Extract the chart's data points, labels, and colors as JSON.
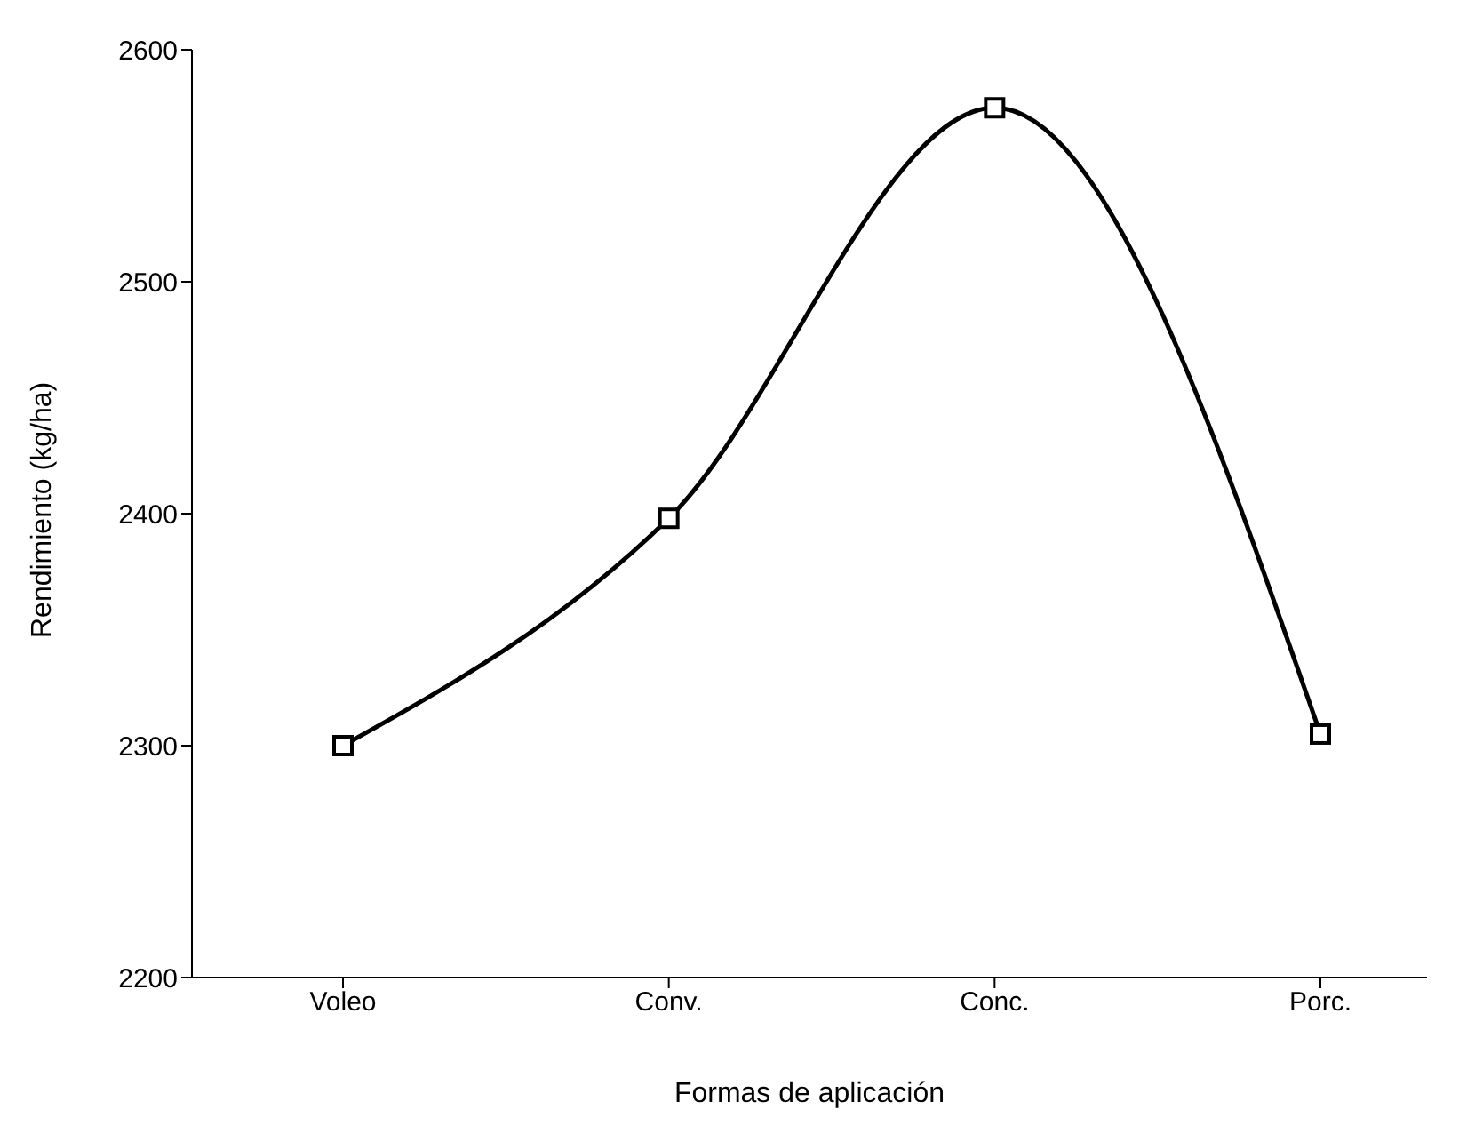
{
  "chart_data": {
    "type": "line",
    "xlabel": "Formas de aplicación",
    "ylabel": "Rendimiento (kg/ha)",
    "categories": [
      "Voleo",
      "Conv.",
      "Conc.",
      "Porc."
    ],
    "series": [
      {
        "color": "#000000",
        "values": [
          2300,
          2398,
          2575,
          2305
        ]
      }
    ],
    "ylim": [
      2200,
      2600
    ],
    "yticks": [
      2200,
      2300,
      2400,
      2500,
      2600
    ],
    "grid": false,
    "legend": false,
    "marker": "square",
    "line_style": "solid"
  }
}
